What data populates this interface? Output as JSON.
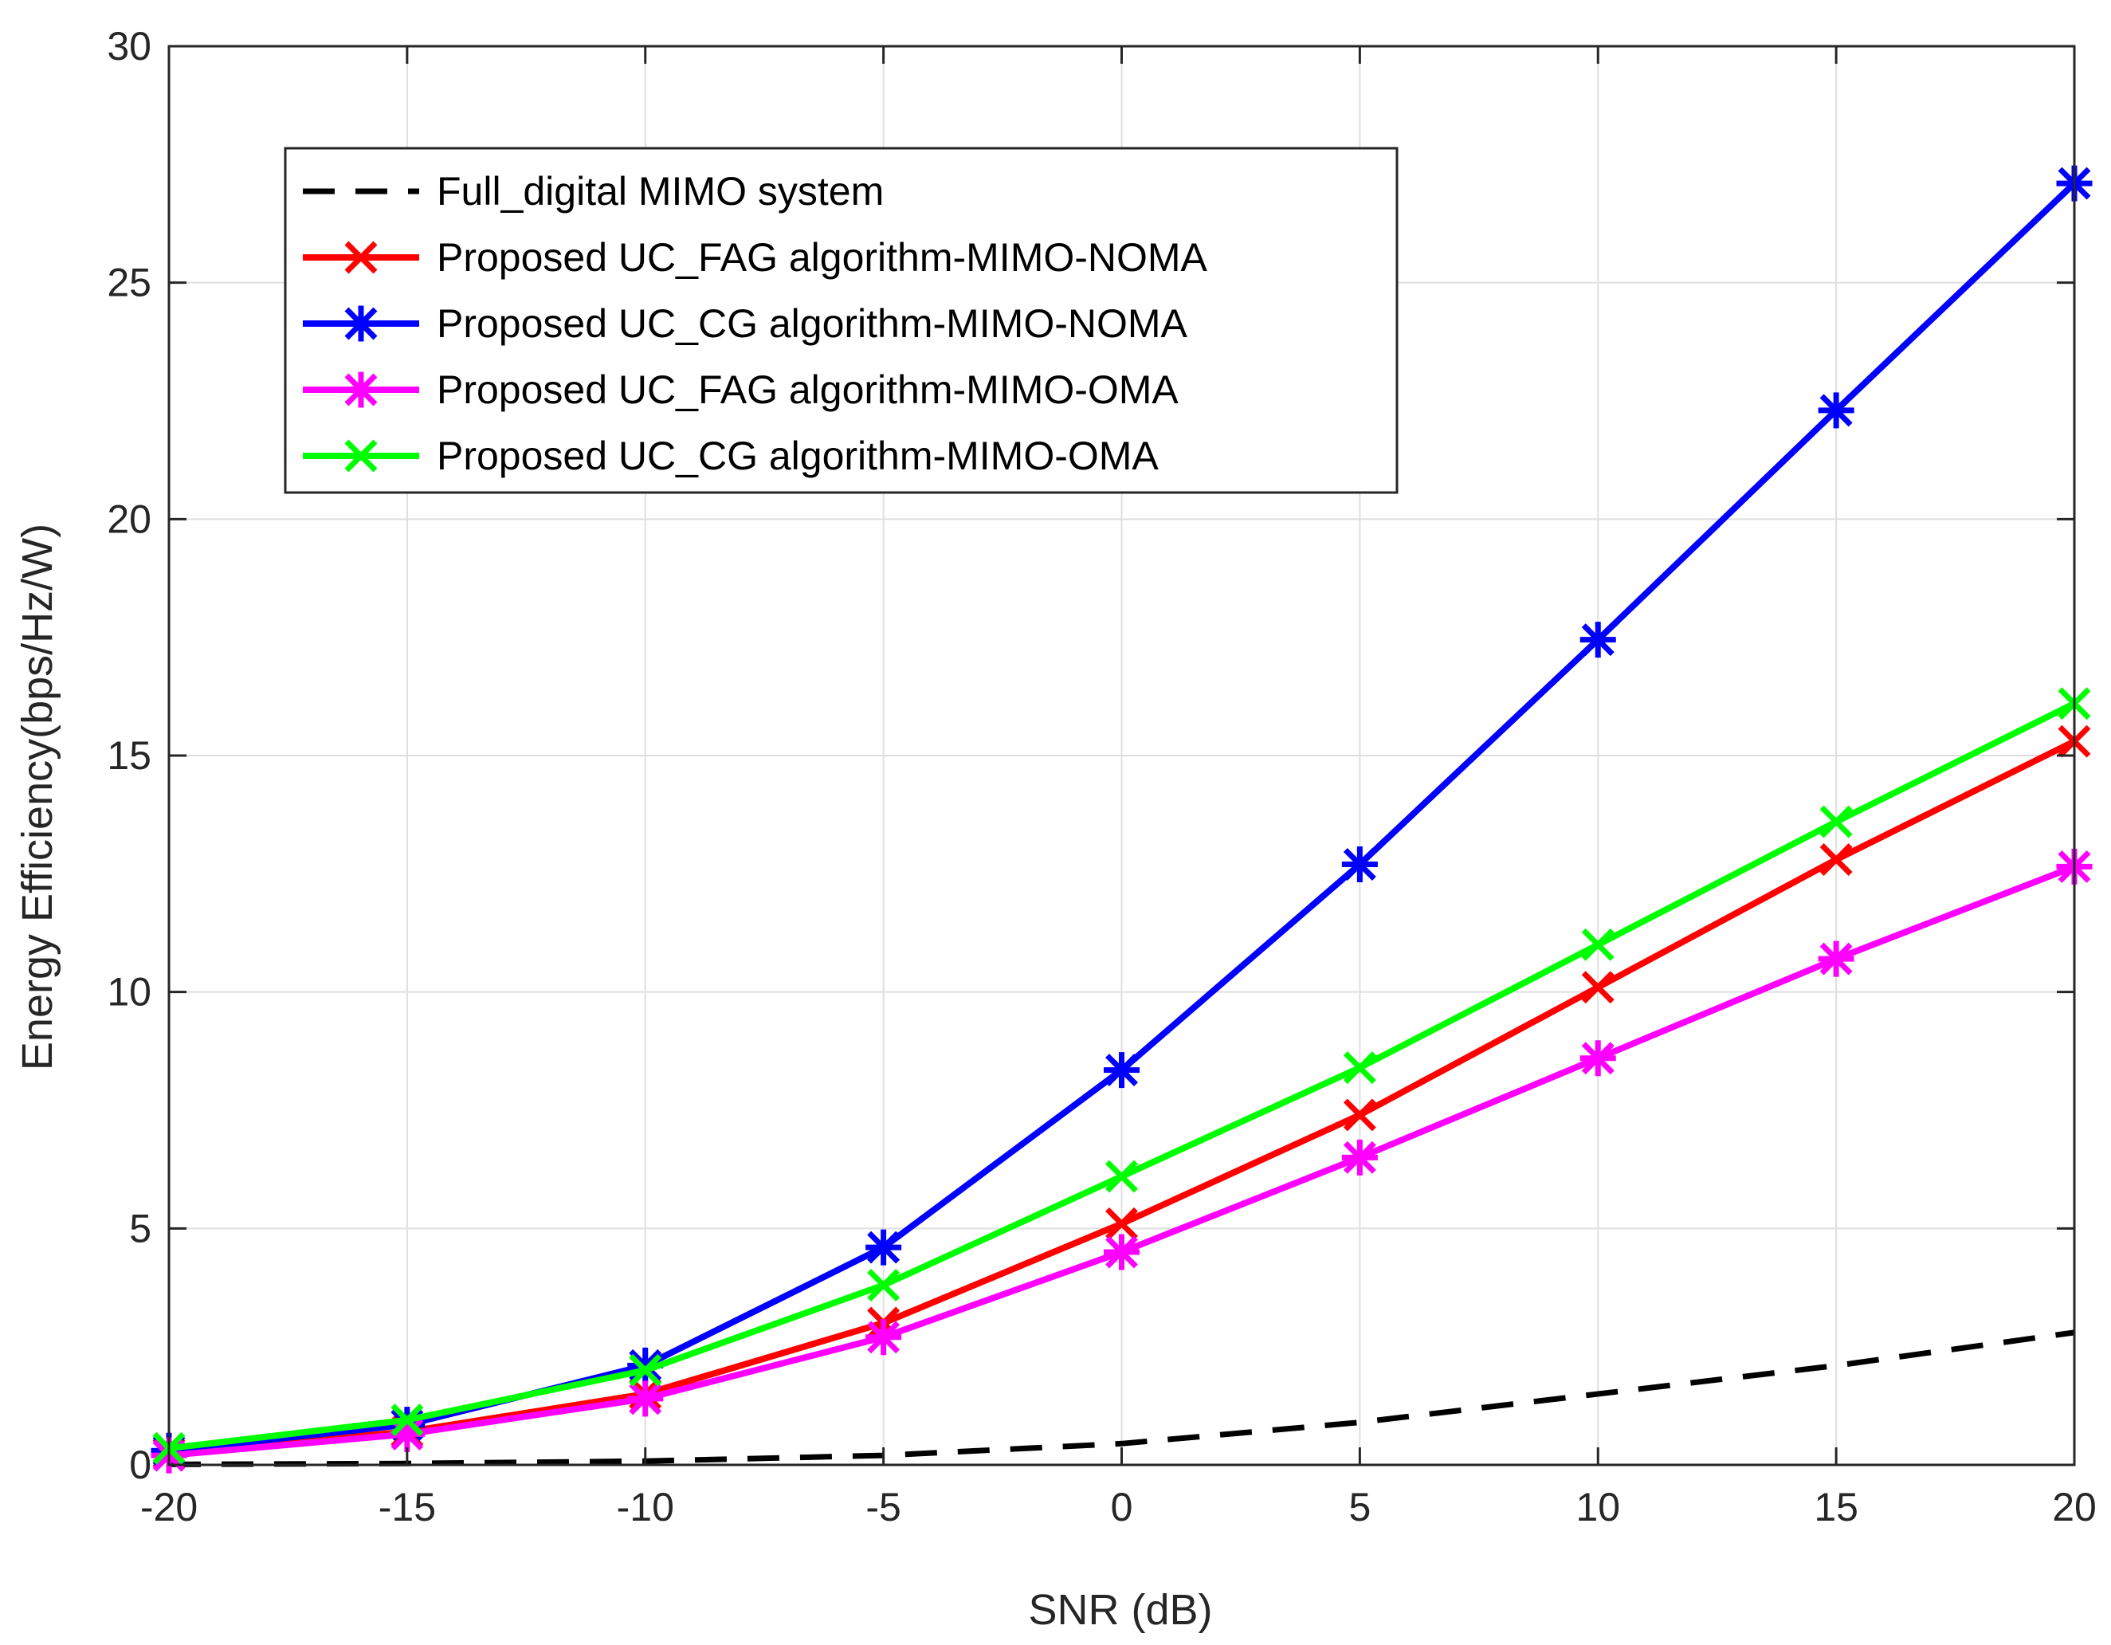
{
  "chart_data": {
    "type": "line",
    "title": "",
    "xlabel": "SNR (dB)",
    "ylabel": "Energy Efficiency(bps/Hz/W)",
    "xlim": [
      -20,
      20
    ],
    "ylim": [
      0,
      30
    ],
    "xticks": [
      -20,
      -15,
      -10,
      -5,
      0,
      5,
      10,
      15,
      20
    ],
    "yticks": [
      0,
      5,
      10,
      15,
      20,
      25,
      30
    ],
    "grid": true,
    "legend_position": "top-left",
    "x": [
      -20,
      -15,
      -10,
      -5,
      0,
      5,
      10,
      15,
      20
    ],
    "series": [
      {
        "name": "Full_digital MIMO system",
        "color": "#000000",
        "style": "dashed",
        "marker": "none",
        "values": [
          0.01,
          0.03,
          0.08,
          0.2,
          0.45,
          0.9,
          1.5,
          2.1,
          2.8
        ]
      },
      {
        "name": "Proposed UC_FAG algorithm-MIMO-NOMA",
        "color": "#ff0000",
        "style": "solid",
        "marker": "x",
        "values": [
          0.25,
          0.7,
          1.5,
          3.0,
          5.1,
          7.4,
          10.1,
          12.8,
          15.3
        ]
      },
      {
        "name": "Proposed UC_CG algorithm-MIMO-NOMA",
        "color": "#0000ff",
        "style": "solid",
        "marker": "asterisk",
        "values": [
          0.3,
          0.85,
          2.1,
          4.6,
          8.35,
          12.7,
          17.45,
          22.3,
          27.1
        ]
      },
      {
        "name": " Proposed UC_FAG algorithm-MIMO-OMA",
        "color": "#ff00ff",
        "style": "solid",
        "marker": "asterisk",
        "values": [
          0.2,
          0.65,
          1.4,
          2.7,
          4.5,
          6.5,
          8.6,
          10.7,
          12.65
        ]
      },
      {
        "name": "Proposed UC_CG algorithm-MIMO-OMA",
        "color": "#00ff00",
        "style": "solid",
        "marker": "x",
        "values": [
          0.35,
          0.95,
          2.0,
          3.8,
          6.1,
          8.4,
          11.0,
          13.6,
          16.1
        ]
      }
    ]
  }
}
